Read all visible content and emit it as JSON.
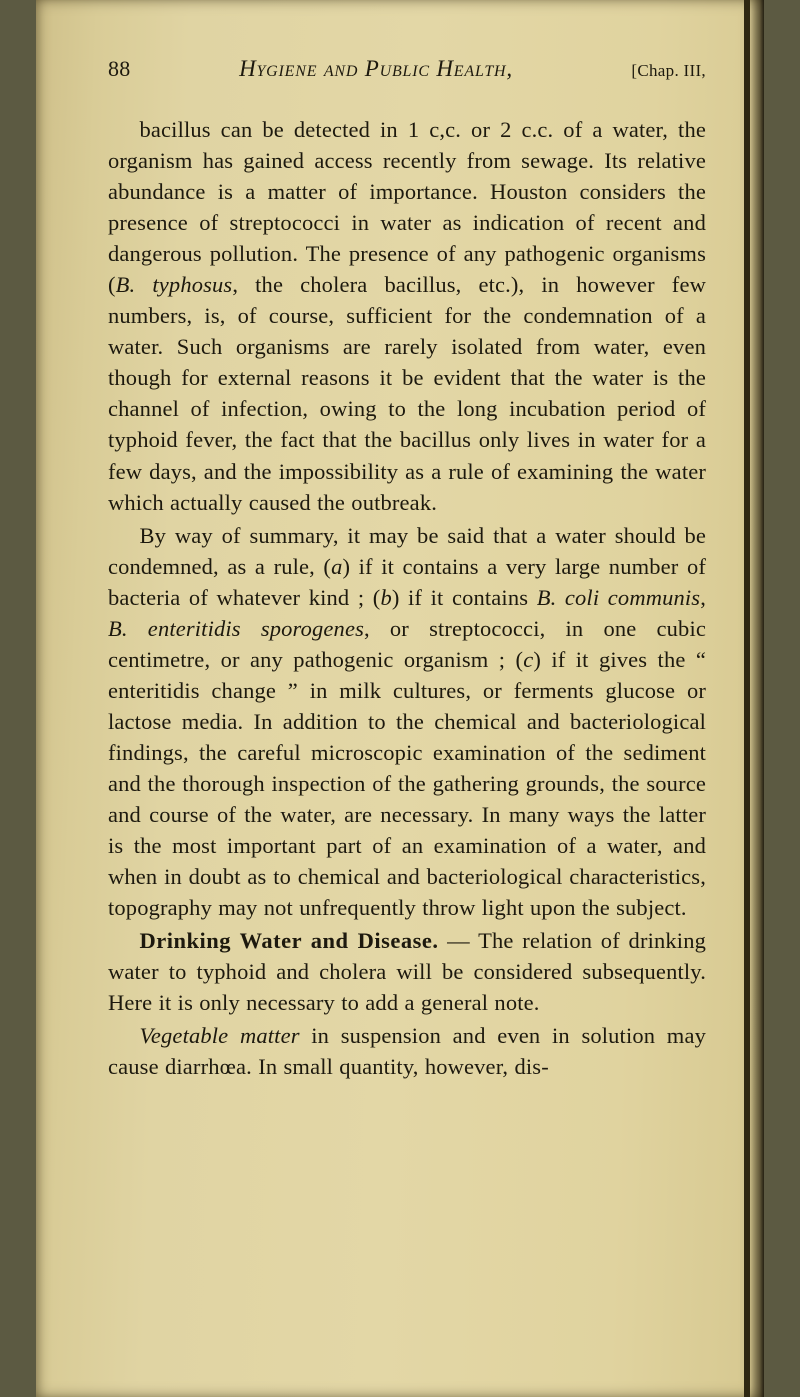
{
  "page": {
    "number": "88",
    "running_title": "Hygiene and Public Health,",
    "chapter_ref": "[Chap. III,",
    "background_color": "#e0d4a3",
    "text_color": "#1d190e",
    "body_fontsize": 22.5,
    "line_height": 1.38
  },
  "paragraphs": {
    "p1": "bacillus can be detected in 1 c,c. or 2 c.c. of a water, the organism has gained access recently from sewage. Its relative abundance is a matter of importance. Houston considers the presence of streptococci in water as indication of recent and dangerous pollution. The presence of any pathogenic organisms (<i>B. typhosus</i>, the cholera bacillus, etc.), in however few numbers, is, of course, sufficient for the condemnation of a water. Such organisms are rarely isolated from water, even though for external reasons it be evident that the water is the channel of infection, owing to the long incubation period of typhoid fever, the fact that the bacillus only lives in water for a few days, and the impossibility as a rule of examining the water which actually caused the outbreak.",
    "p2": "By way of summary, it may be said that a water should be condemned, as a rule, (<i>a</i>) if it contains a very large number of bacteria of whatever kind ; (<i>b</i>) if it contains <i>B. coli communis</i>, <i>B. enteritidis sporo&shy;genes</i>, or streptococci, in one cubic centimetre, or any pathogenic organism ; (<i>c</i>) if it gives the &ldquo; enteri&shy;tidis change &rdquo; in milk cultures, or ferments glucose or lactose media. In addition to the chemical and bacteriological findings, the careful microscopic exam&shy;ination of the sediment and the thorough inspection of the gathering grounds, the source and course of the water, are necessary. In many ways the latter is the most important part of an examination of a water, and when in doubt as to chemical and bacteriological characteristics, topography may not unfrequently throw light upon the subject.",
    "p3_runin": "Drinking Water and Disease.",
    "p3_rest": " &mdash; The rela&shy;tion of drinking water to typhoid and cholera will be considered subsequently. Here it is only necessary to add a general note.",
    "p4": "<i>Vegetable matter</i> in suspension and even in solution may cause diarrh&oelig;a. In small quantity, however, dis-"
  }
}
